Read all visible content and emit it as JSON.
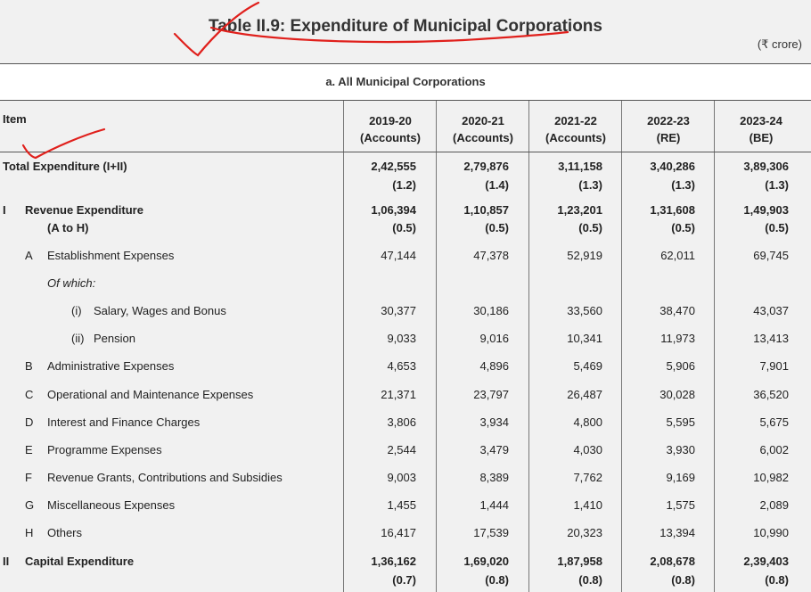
{
  "header": {
    "title": "Table II.9: Expenditure of Municipal Corporations",
    "unit": "(₹ crore)",
    "subtitle": "a. All Municipal Corporations"
  },
  "columns": {
    "item": "Item",
    "years": [
      {
        "year": "2019-20",
        "type": "(Accounts)"
      },
      {
        "year": "2020-21",
        "type": "(Accounts)"
      },
      {
        "year": "2021-22",
        "type": "(Accounts)"
      },
      {
        "year": "2022-23",
        "type": "(RE)"
      },
      {
        "year": "2023-24",
        "type": "(BE)"
      }
    ]
  },
  "rows": [
    {
      "marker": "",
      "label": "Total Expenditure (I+II)",
      "label2": "",
      "bold": true,
      "values": [
        "2,42,555",
        "2,79,876",
        "3,11,158",
        "3,40,286",
        "3,89,306"
      ],
      "sub": [
        "(1.2)",
        "(1.4)",
        "(1.3)",
        "(1.3)",
        "(1.3)"
      ]
    },
    {
      "marker": "I",
      "label": "Revenue Expenditure",
      "label2": "(A to H)",
      "bold": true,
      "values": [
        "1,06,394",
        "1,10,857",
        "1,23,201",
        "1,31,608",
        "1,49,903"
      ],
      "sub": [
        "(0.5)",
        "(0.5)",
        "(0.5)",
        "(0.5)",
        "(0.5)"
      ]
    },
    {
      "marker": "A",
      "label": "Establishment Expenses",
      "values": [
        "47,144",
        "47,378",
        "52,919",
        "62,011",
        "69,745"
      ]
    },
    {
      "marker": "",
      "label": "Of which:",
      "values": [
        "",
        "",
        "",
        "",
        ""
      ]
    },
    {
      "marker": "(i)",
      "label": "Salary, Wages and Bonus",
      "values": [
        "30,377",
        "30,186",
        "33,560",
        "38,470",
        "43,037"
      ]
    },
    {
      "marker": "(ii)",
      "label": "Pension",
      "values": [
        "9,033",
        "9,016",
        "10,341",
        "11,973",
        "13,413"
      ]
    },
    {
      "marker": "B",
      "label": "Administrative Expenses",
      "values": [
        "4,653",
        "4,896",
        "5,469",
        "5,906",
        "7,901"
      ]
    },
    {
      "marker": "C",
      "label": "Operational and Maintenance Expenses",
      "values": [
        "21,371",
        "23,797",
        "26,487",
        "30,028",
        "36,520"
      ]
    },
    {
      "marker": "D",
      "label": "Interest and Finance Charges",
      "values": [
        "3,806",
        "3,934",
        "4,800",
        "5,595",
        "5,675"
      ]
    },
    {
      "marker": "E",
      "label": "Programme Expenses",
      "values": [
        "2,544",
        "3,479",
        "4,030",
        "3,930",
        "6,002"
      ]
    },
    {
      "marker": "F",
      "label": "Revenue Grants, Contributions and Subsidies",
      "values": [
        "9,003",
        "8,389",
        "7,762",
        "9,169",
        "10,982"
      ]
    },
    {
      "marker": "G",
      "label": "Miscellaneous Expenses",
      "values": [
        "1,455",
        "1,444",
        "1,410",
        "1,575",
        "2,089"
      ]
    },
    {
      "marker": "H",
      "label": "Others",
      "values": [
        "16,417",
        "17,539",
        "20,323",
        "13,394",
        "10,990"
      ]
    },
    {
      "marker": "II",
      "label": "Capital Expenditure",
      "label2": "",
      "bold": true,
      "values": [
        "1,36,162",
        "1,69,020",
        "1,87,958",
        "2,08,678",
        "2,39,403"
      ],
      "sub": [
        "(0.7)",
        "(0.8)",
        "(0.8)",
        "(0.8)",
        "(0.8)"
      ]
    }
  ],
  "annotation_color": "#e0201c"
}
